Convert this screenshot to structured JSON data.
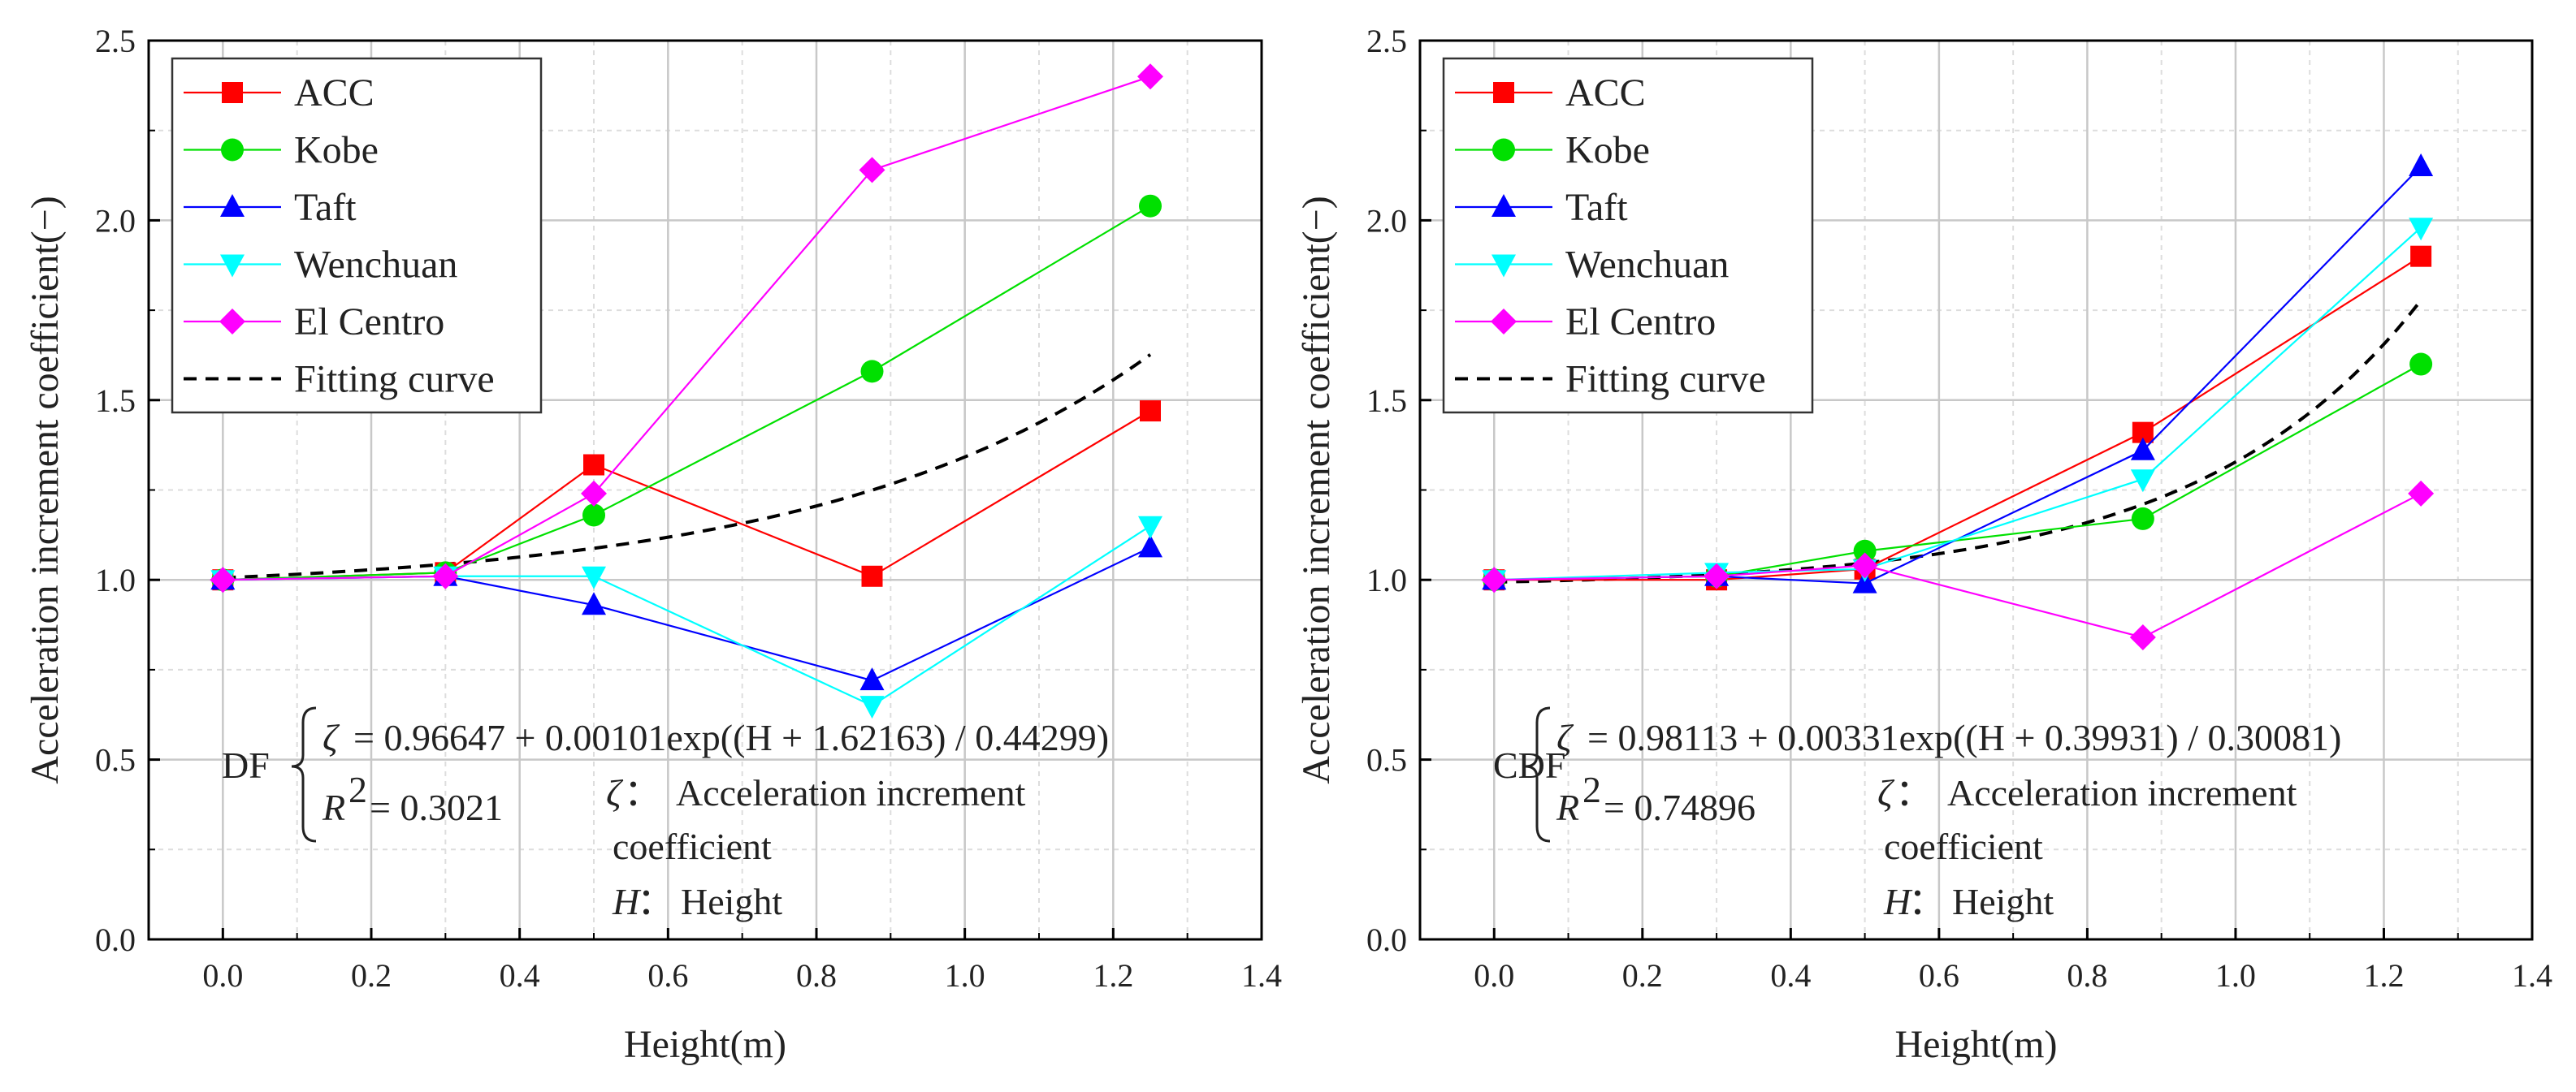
{
  "chart_data": [
    {
      "type": "line",
      "xlabel": "Height(m)",
      "ylabel": "Acceleration increment coefficient(−)",
      "xlim": [
        -0.1,
        1.4
      ],
      "ylim": [
        0.0,
        2.5
      ],
      "xticks": [
        "0.0",
        "0.2",
        "0.4",
        "0.6",
        "0.8",
        "1.0",
        "1.2",
        "1.4"
      ],
      "yticks": [
        "0.0",
        "0.5",
        "1.0",
        "1.5",
        "2.0",
        "2.5"
      ],
      "grid": true,
      "legend_position": "top-left",
      "x": [
        0.0,
        0.3,
        0.5,
        0.875,
        1.25
      ],
      "series": [
        {
          "name": "ACC",
          "color": "#ff0000",
          "marker": "square",
          "values": [
            1.0,
            1.02,
            1.32,
            1.01,
            1.47
          ]
        },
        {
          "name": "Kobe",
          "color": "#00e000",
          "marker": "circle",
          "values": [
            1.0,
            1.02,
            1.18,
            1.58,
            2.04
          ]
        },
        {
          "name": "Taft",
          "color": "#0000ff",
          "marker": "triangle-up",
          "values": [
            1.0,
            1.01,
            0.93,
            0.72,
            1.09
          ]
        },
        {
          "name": "Wenchuan",
          "color": "#00ffff",
          "marker": "triangle-down",
          "values": [
            1.0,
            1.01,
            1.01,
            0.65,
            1.15
          ]
        },
        {
          "name": "El Centro",
          "color": "#ff00ff",
          "marker": "diamond",
          "values": [
            1.0,
            1.01,
            1.24,
            2.14,
            2.4
          ]
        }
      ],
      "fit": {
        "name": "Fitting curve",
        "color": "#000000",
        "style": "dashed",
        "a": 0.96647,
        "b": 0.00101,
        "c": 1.62163,
        "d": 0.44299,
        "x_range": [
          0.0,
          1.25
        ]
      },
      "annotation": {
        "method": "DF",
        "zeta": "ζ",
        "equation": "= 0.96647 + 0.00101exp((H + 1.62163) / 0.44299)",
        "r2_label": "R",
        "r2_sup": "2",
        "r2_value": "= 0.3021",
        "def_zeta": "Acceleration increment",
        "def_zeta_cont": "coefficient",
        "h_symbol": "H",
        "def_h": "Height",
        "colon": "："
      }
    },
    {
      "type": "line",
      "xlabel": "Height(m)",
      "ylabel": "Acceleration increment coefficient(−)",
      "xlim": [
        -0.1,
        1.4
      ],
      "ylim": [
        0.0,
        2.5
      ],
      "xticks": [
        "0.0",
        "0.2",
        "0.4",
        "0.6",
        "0.8",
        "1.0",
        "1.2",
        "1.4"
      ],
      "yticks": [
        "0.0",
        "0.5",
        "1.0",
        "1.5",
        "2.0",
        "2.5"
      ],
      "grid": true,
      "legend_position": "top-left",
      "x": [
        0.0,
        0.3,
        0.5,
        0.875,
        1.25
      ],
      "series": [
        {
          "name": "ACC",
          "color": "#ff0000",
          "marker": "square",
          "values": [
            1.0,
            1.0,
            1.03,
            1.41,
            1.9
          ]
        },
        {
          "name": "Kobe",
          "color": "#00e000",
          "marker": "circle",
          "values": [
            1.0,
            1.01,
            1.08,
            1.17,
            1.6
          ]
        },
        {
          "name": "Taft",
          "color": "#0000ff",
          "marker": "triangle-up",
          "values": [
            1.0,
            1.01,
            0.99,
            1.36,
            2.15
          ]
        },
        {
          "name": "Wenchuan",
          "color": "#00ffff",
          "marker": "triangle-down",
          "values": [
            1.0,
            1.02,
            1.03,
            1.28,
            1.98
          ]
        },
        {
          "name": "El Centro",
          "color": "#ff00ff",
          "marker": "diamond",
          "values": [
            1.0,
            1.01,
            1.04,
            0.84,
            1.24
          ]
        }
      ],
      "fit": {
        "name": "Fitting curve",
        "color": "#000000",
        "style": "dashed",
        "a": 0.98113,
        "b": 0.00331,
        "c": 0.39931,
        "d": 0.30081,
        "x_range": [
          0.0,
          1.25
        ]
      },
      "annotation": {
        "method": "CDF",
        "zeta": "ζ",
        "equation": "= 0.98113 + 0.00331exp((H + 0.39931) / 0.30081)",
        "r2_label": "R",
        "r2_sup": "2",
        "r2_value": "= 0.74896",
        "def_zeta": "Acceleration increment",
        "def_zeta_cont": "coefficient",
        "h_symbol": "H",
        "def_h": "Height",
        "colon": "："
      }
    }
  ]
}
